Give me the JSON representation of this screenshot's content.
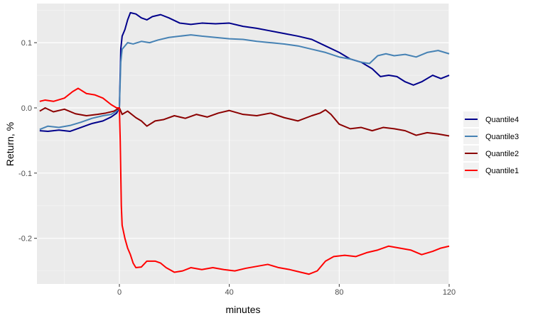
{
  "chart_data": {
    "type": "line",
    "title": "",
    "xlabel": "minutes",
    "ylabel": "Return, %",
    "xlim": [
      -30,
      120
    ],
    "ylim": [
      -0.27,
      0.16
    ],
    "x_ticks": [
      0,
      40,
      80,
      120
    ],
    "x_tick_labels": [
      "0",
      "40",
      "80",
      "120"
    ],
    "y_ticks": [
      -0.2,
      -0.1,
      0.0,
      0.1
    ],
    "y_tick_labels": [
      "-0.2",
      "-0.1",
      "0.0",
      "0.1"
    ],
    "x_minor_ticks": [
      -20,
      20,
      60,
      100
    ],
    "y_minor_ticks": [
      -0.25,
      -0.15,
      -0.05,
      0.05,
      0.15
    ],
    "grid": true,
    "legend": {
      "position": "right",
      "entries": [
        "Quantile4",
        "Quantile3",
        "Quantile2",
        "Quantile1"
      ]
    },
    "series": [
      {
        "name": "Quantile4",
        "color": "#00008B",
        "points": [
          [
            -29,
            -0.035
          ],
          [
            -26,
            -0.036
          ],
          [
            -22,
            -0.034
          ],
          [
            -18,
            -0.036
          ],
          [
            -14,
            -0.03
          ],
          [
            -10,
            -0.024
          ],
          [
            -6,
            -0.02
          ],
          [
            -3,
            -0.014
          ],
          [
            -1,
            -0.008
          ],
          [
            0,
            0.0
          ],
          [
            0.5,
            0.09
          ],
          [
            1,
            0.11
          ],
          [
            2,
            0.12
          ],
          [
            3,
            0.135
          ],
          [
            4,
            0.146
          ],
          [
            6,
            0.144
          ],
          [
            8,
            0.138
          ],
          [
            10,
            0.135
          ],
          [
            12,
            0.14
          ],
          [
            15,
            0.143
          ],
          [
            18,
            0.138
          ],
          [
            22,
            0.13
          ],
          [
            26,
            0.128
          ],
          [
            30,
            0.13
          ],
          [
            35,
            0.129
          ],
          [
            40,
            0.13
          ],
          [
            45,
            0.125
          ],
          [
            50,
            0.122
          ],
          [
            55,
            0.118
          ],
          [
            60,
            0.114
          ],
          [
            65,
            0.11
          ],
          [
            70,
            0.105
          ],
          [
            75,
            0.095
          ],
          [
            80,
            0.085
          ],
          [
            84,
            0.075
          ],
          [
            88,
            0.07
          ],
          [
            92,
            0.06
          ],
          [
            95,
            0.048
          ],
          [
            98,
            0.05
          ],
          [
            101,
            0.048
          ],
          [
            104,
            0.04
          ],
          [
            107,
            0.035
          ],
          [
            110,
            0.04
          ],
          [
            114,
            0.05
          ],
          [
            117,
            0.045
          ],
          [
            120,
            0.05
          ]
        ]
      },
      {
        "name": "Quantile3",
        "color": "#4682B4",
        "points": [
          [
            -29,
            -0.033
          ],
          [
            -26,
            -0.028
          ],
          [
            -22,
            -0.03
          ],
          [
            -18,
            -0.027
          ],
          [
            -14,
            -0.022
          ],
          [
            -10,
            -0.016
          ],
          [
            -6,
            -0.012
          ],
          [
            -3,
            -0.01
          ],
          [
            -1,
            -0.005
          ],
          [
            0,
            0.0
          ],
          [
            0.5,
            0.07
          ],
          [
            1,
            0.09
          ],
          [
            2,
            0.095
          ],
          [
            3,
            0.1
          ],
          [
            5,
            0.098
          ],
          [
            8,
            0.102
          ],
          [
            11,
            0.1
          ],
          [
            14,
            0.104
          ],
          [
            18,
            0.108
          ],
          [
            22,
            0.11
          ],
          [
            26,
            0.112
          ],
          [
            30,
            0.11
          ],
          [
            35,
            0.108
          ],
          [
            40,
            0.106
          ],
          [
            45,
            0.105
          ],
          [
            50,
            0.102
          ],
          [
            55,
            0.1
          ],
          [
            60,
            0.098
          ],
          [
            65,
            0.095
          ],
          [
            70,
            0.09
          ],
          [
            75,
            0.085
          ],
          [
            80,
            0.078
          ],
          [
            84,
            0.075
          ],
          [
            88,
            0.07
          ],
          [
            91,
            0.068
          ],
          [
            94,
            0.08
          ],
          [
            97,
            0.083
          ],
          [
            100,
            0.08
          ],
          [
            104,
            0.082
          ],
          [
            108,
            0.078
          ],
          [
            112,
            0.085
          ],
          [
            116,
            0.088
          ],
          [
            120,
            0.083
          ]
        ]
      },
      {
        "name": "Quantile2",
        "color": "#8B0000",
        "points": [
          [
            -29,
            -0.005
          ],
          [
            -27,
            0.0
          ],
          [
            -24,
            -0.006
          ],
          [
            -20,
            -0.002
          ],
          [
            -16,
            -0.009
          ],
          [
            -12,
            -0.012
          ],
          [
            -8,
            -0.01
          ],
          [
            -5,
            -0.008
          ],
          [
            -2,
            -0.005
          ],
          [
            0,
            0.0
          ],
          [
            1,
            -0.01
          ],
          [
            3,
            -0.005
          ],
          [
            6,
            -0.015
          ],
          [
            8,
            -0.02
          ],
          [
            10,
            -0.028
          ],
          [
            13,
            -0.02
          ],
          [
            16,
            -0.018
          ],
          [
            20,
            -0.012
          ],
          [
            24,
            -0.016
          ],
          [
            28,
            -0.01
          ],
          [
            32,
            -0.014
          ],
          [
            36,
            -0.008
          ],
          [
            40,
            -0.004
          ],
          [
            45,
            -0.01
          ],
          [
            50,
            -0.012
          ],
          [
            55,
            -0.008
          ],
          [
            60,
            -0.015
          ],
          [
            65,
            -0.02
          ],
          [
            70,
            -0.012
          ],
          [
            73,
            -0.008
          ],
          [
            75,
            -0.003
          ],
          [
            77,
            -0.01
          ],
          [
            80,
            -0.025
          ],
          [
            84,
            -0.032
          ],
          [
            88,
            -0.03
          ],
          [
            92,
            -0.035
          ],
          [
            96,
            -0.03
          ],
          [
            100,
            -0.032
          ],
          [
            104,
            -0.035
          ],
          [
            108,
            -0.042
          ],
          [
            112,
            -0.038
          ],
          [
            116,
            -0.04
          ],
          [
            120,
            -0.043
          ]
        ]
      },
      {
        "name": "Quantile1",
        "color": "#FF0000",
        "points": [
          [
            -29,
            0.01
          ],
          [
            -27,
            0.012
          ],
          [
            -24,
            0.01
          ],
          [
            -20,
            0.015
          ],
          [
            -17,
            0.025
          ],
          [
            -15,
            0.03
          ],
          [
            -12,
            0.022
          ],
          [
            -9,
            0.02
          ],
          [
            -6,
            0.015
          ],
          [
            -3,
            0.005
          ],
          [
            -1,
            0.0
          ],
          [
            0,
            0.0
          ],
          [
            0.3,
            -0.05
          ],
          [
            0.7,
            -0.15
          ],
          [
            1,
            -0.18
          ],
          [
            2,
            -0.2
          ],
          [
            3,
            -0.215
          ],
          [
            4,
            -0.225
          ],
          [
            5,
            -0.238
          ],
          [
            6,
            -0.245
          ],
          [
            8,
            -0.244
          ],
          [
            10,
            -0.235
          ],
          [
            13,
            -0.235
          ],
          [
            15,
            -0.238
          ],
          [
            17,
            -0.245
          ],
          [
            20,
            -0.252
          ],
          [
            23,
            -0.25
          ],
          [
            26,
            -0.245
          ],
          [
            30,
            -0.248
          ],
          [
            34,
            -0.245
          ],
          [
            38,
            -0.248
          ],
          [
            42,
            -0.25
          ],
          [
            46,
            -0.246
          ],
          [
            50,
            -0.243
          ],
          [
            54,
            -0.24
          ],
          [
            58,
            -0.245
          ],
          [
            62,
            -0.248
          ],
          [
            66,
            -0.252
          ],
          [
            69,
            -0.255
          ],
          [
            72,
            -0.25
          ],
          [
            75,
            -0.235
          ],
          [
            78,
            -0.228
          ],
          [
            82,
            -0.226
          ],
          [
            86,
            -0.228
          ],
          [
            90,
            -0.222
          ],
          [
            94,
            -0.218
          ],
          [
            98,
            -0.212
          ],
          [
            102,
            -0.215
          ],
          [
            106,
            -0.218
          ],
          [
            110,
            -0.225
          ],
          [
            114,
            -0.22
          ],
          [
            117,
            -0.215
          ],
          [
            120,
            -0.212
          ]
        ]
      }
    ]
  }
}
